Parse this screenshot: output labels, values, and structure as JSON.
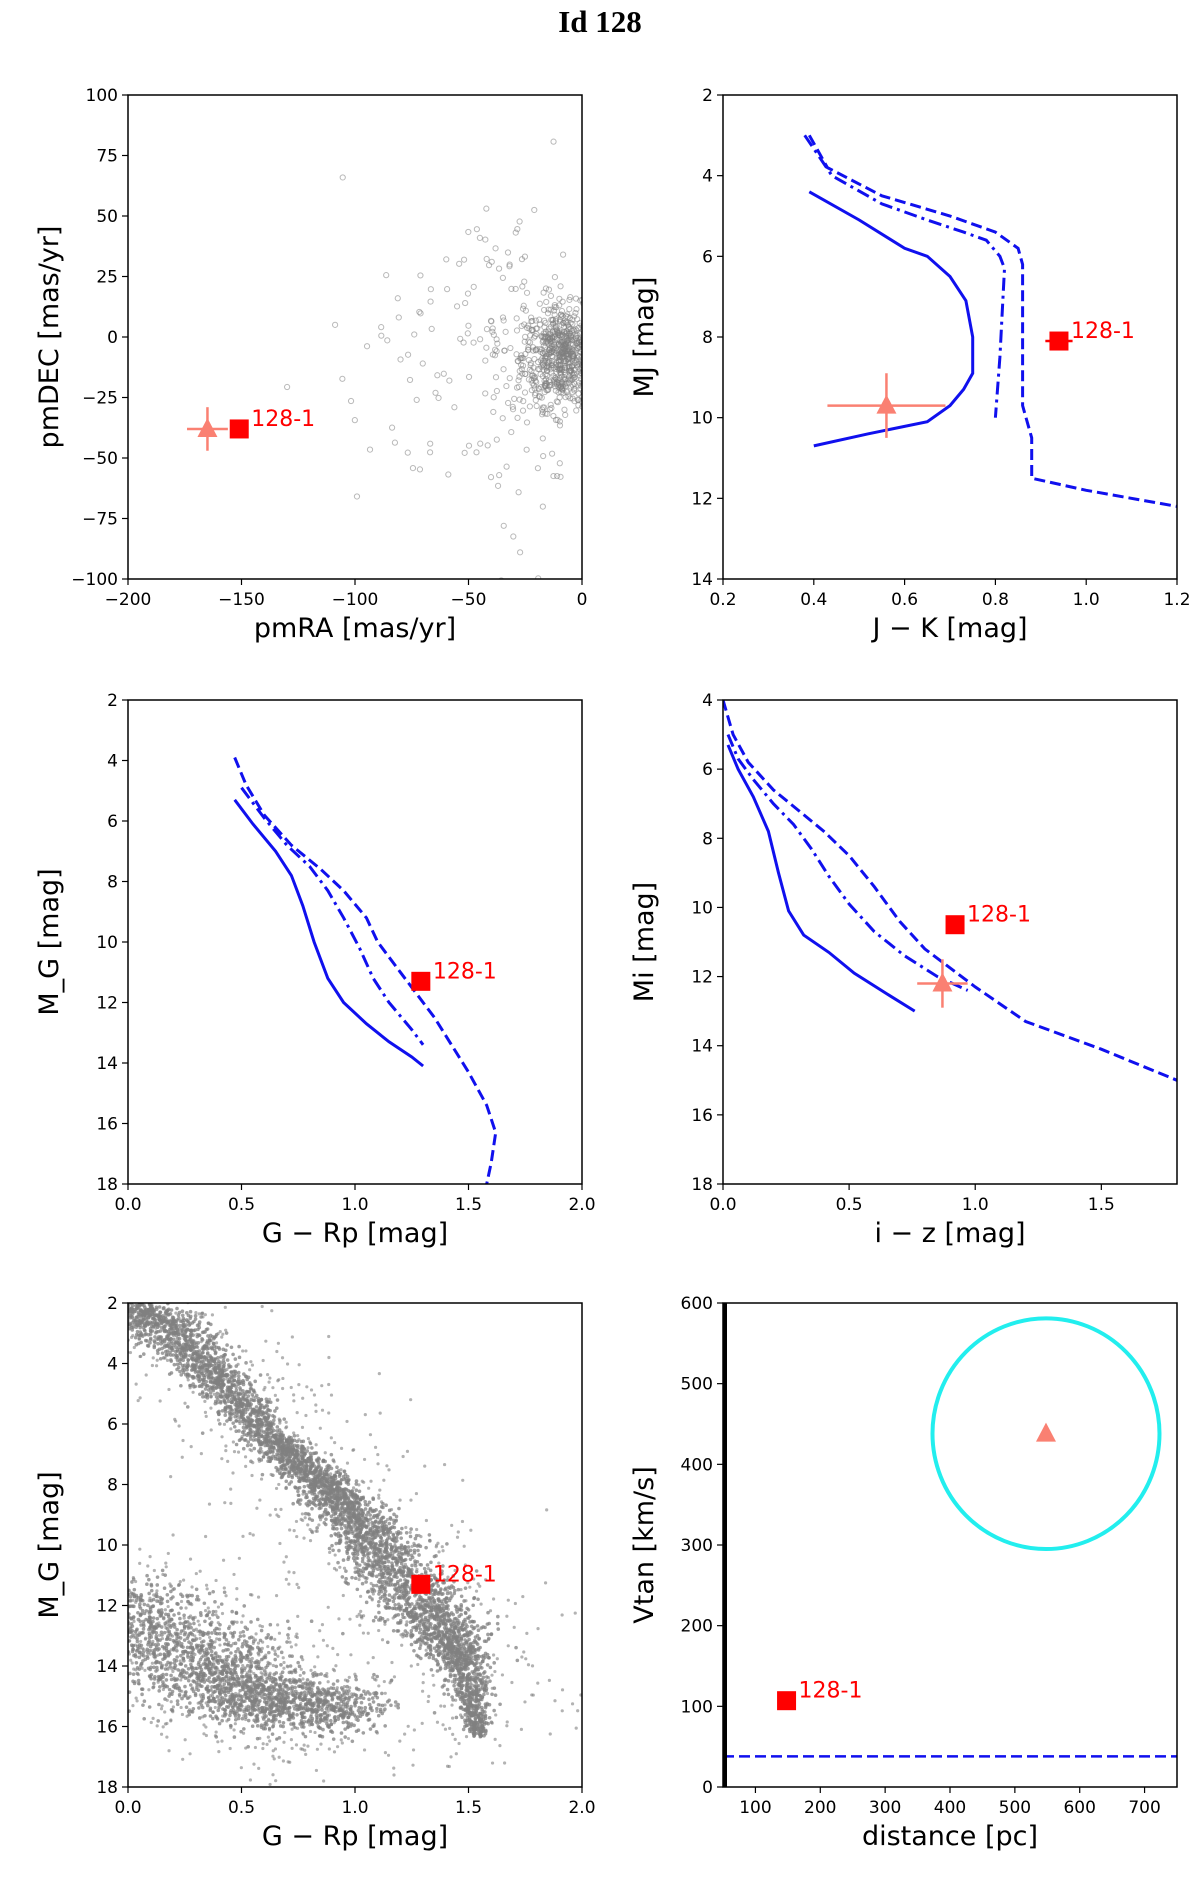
{
  "title": "Id 128",
  "colors": {
    "model": "#1010ee",
    "target": "#ff0000",
    "estimate": "#fa8072",
    "background_stars": "#808080",
    "circle": "#22eeee"
  },
  "chart_data": [
    {
      "id": "pm",
      "type": "scatter",
      "xlabel": "pmRA [mas/yr]",
      "ylabel": "pmDEC [mas/yr]",
      "xlim": [
        -200,
        0
      ],
      "ylim": [
        -100,
        100
      ],
      "xticks": [
        -200,
        -150,
        -100,
        -50,
        0
      ],
      "xtick_labels": [
        "−200",
        "−150",
        "−100",
        "−50",
        "0"
      ],
      "yticks": [
        100,
        75,
        50,
        25,
        0,
        -25,
        -50,
        -75,
        -100
      ],
      "ytick_labels": [
        "100",
        "75",
        "50",
        "25",
        "0",
        "−25",
        "−50",
        "−75",
        "−100"
      ],
      "series": [
        {
          "name": "field stars",
          "style": "hollow-circle",
          "cluster": {
            "cx": -8,
            "cy": -8,
            "sx": 9,
            "sy": 10,
            "n": 700,
            "tail": 180
          }
        },
        {
          "name": "estimate",
          "style": "triangle",
          "x": -165,
          "y": -38,
          "xerr": 9,
          "yerr": 9
        },
        {
          "name": "128-1",
          "style": "square",
          "x": -151,
          "y": -38,
          "label": "128-1"
        }
      ]
    },
    {
      "id": "jk",
      "type": "line",
      "xlabel": "J − K [mag]",
      "ylabel": "MJ [mag]",
      "xlim": [
        0.2,
        1.2
      ],
      "ylim": [
        14,
        2
      ],
      "xticks": [
        0.2,
        0.4,
        0.6,
        0.8,
        1.0,
        1.2
      ],
      "xtick_labels": [
        "0.2",
        "0.4",
        "0.6",
        "0.8",
        "1.0",
        "1.2"
      ],
      "yticks": [
        2,
        4,
        6,
        8,
        10,
        12,
        14
      ],
      "ytick_labels": [
        "2",
        "4",
        "6",
        "8",
        "10",
        "12",
        "14"
      ],
      "series": [
        {
          "name": "solid",
          "style": "solid",
          "x": [
            0.39,
            0.5,
            0.6,
            0.65,
            0.7,
            0.735,
            0.75,
            0.75,
            0.73,
            0.7,
            0.65,
            0.52,
            0.4
          ],
          "y": [
            4.4,
            5.1,
            5.8,
            6.0,
            6.5,
            7.1,
            8.0,
            8.9,
            9.3,
            9.7,
            10.1,
            10.4,
            10.7
          ]
        },
        {
          "name": "dashdot",
          "style": "dashdot",
          "x": [
            0.38,
            0.44,
            0.55,
            0.65,
            0.73,
            0.78,
            0.81,
            0.82,
            0.81,
            0.8
          ],
          "y": [
            3.0,
            4.0,
            4.7,
            5.1,
            5.4,
            5.6,
            6.0,
            6.3,
            8.5,
            10.0
          ]
        },
        {
          "name": "dashed",
          "style": "dashed",
          "x": [
            0.39,
            0.43,
            0.55,
            0.7,
            0.8,
            0.85,
            0.86,
            0.86,
            0.88,
            0.88,
            1.0,
            1.2
          ],
          "y": [
            3.0,
            3.8,
            4.5,
            5.0,
            5.4,
            5.8,
            6.2,
            9.7,
            10.5,
            11.5,
            11.8,
            12.2
          ]
        },
        {
          "name": "estimate",
          "style": "triangle",
          "x": 0.56,
          "y": 9.7,
          "xerr": 0.13,
          "yerr": 0.8
        },
        {
          "name": "128-1",
          "style": "square",
          "x": 0.94,
          "y": 8.1,
          "xerr": 0.03,
          "label": "128-1"
        }
      ]
    },
    {
      "id": "grp",
      "type": "line",
      "xlabel": "G − Rp [mag]",
      "ylabel": "M_G [mag]",
      "xlim": [
        0.0,
        2.0
      ],
      "ylim": [
        18,
        2
      ],
      "xticks": [
        0.0,
        0.5,
        1.0,
        1.5,
        2.0
      ],
      "xtick_labels": [
        "0.0",
        "0.5",
        "1.0",
        "1.5",
        "2.0"
      ],
      "yticks": [
        2,
        4,
        6,
        8,
        10,
        12,
        14,
        16,
        18
      ],
      "ytick_labels": [
        "2",
        "4",
        "6",
        "8",
        "10",
        "12",
        "14",
        "16",
        "18"
      ],
      "series": [
        {
          "name": "solid",
          "style": "solid",
          "x": [
            0.47,
            0.55,
            0.65,
            0.72,
            0.77,
            0.82,
            0.88,
            0.95,
            1.05,
            1.15,
            1.25,
            1.3
          ],
          "y": [
            5.3,
            6.1,
            7.0,
            7.8,
            8.8,
            10.0,
            11.2,
            12.0,
            12.7,
            13.3,
            13.8,
            14.1
          ]
        },
        {
          "name": "dashdot",
          "style": "dashdot",
          "x": [
            0.5,
            0.6,
            0.7,
            0.8,
            0.88,
            0.95,
            1.02,
            1.08,
            1.15,
            1.25,
            1.3
          ],
          "y": [
            4.9,
            5.9,
            6.8,
            7.5,
            8.3,
            9.2,
            10.2,
            11.2,
            12.0,
            12.9,
            13.4
          ]
        },
        {
          "name": "dashed",
          "style": "dashed",
          "x": [
            0.47,
            0.52,
            0.6,
            0.72,
            0.85,
            0.95,
            1.05,
            1.1,
            1.2,
            1.35,
            1.5,
            1.58,
            1.62,
            1.6,
            1.58
          ],
          "y": [
            3.9,
            4.8,
            5.8,
            6.8,
            7.6,
            8.3,
            9.2,
            10.0,
            11.0,
            12.5,
            14.3,
            15.4,
            16.3,
            17.3,
            18.0
          ]
        },
        {
          "name": "128-1",
          "style": "square",
          "x": 1.29,
          "y": 11.3,
          "label": "128-1"
        }
      ]
    },
    {
      "id": "iz",
      "type": "line",
      "xlabel": "i − z [mag]",
      "ylabel": "Mi [mag]",
      "xlim": [
        0.0,
        1.8
      ],
      "ylim": [
        18,
        4
      ],
      "xticks": [
        0.0,
        0.5,
        1.0,
        1.5
      ],
      "xtick_labels": [
        "0.0",
        "0.5",
        "1.0",
        "1.5"
      ],
      "yticks": [
        4,
        6,
        8,
        10,
        12,
        14,
        16,
        18
      ],
      "ytick_labels": [
        "4",
        "6",
        "8",
        "10",
        "12",
        "14",
        "16",
        "18"
      ],
      "series": [
        {
          "name": "solid",
          "style": "solid",
          "x": [
            0.02,
            0.06,
            0.12,
            0.18,
            0.22,
            0.26,
            0.32,
            0.42,
            0.52,
            0.65,
            0.76
          ],
          "y": [
            5.3,
            6.0,
            6.8,
            7.8,
            9.0,
            10.1,
            10.8,
            11.3,
            11.9,
            12.5,
            13.0
          ]
        },
        {
          "name": "dashdot",
          "style": "dashdot",
          "x": [
            0.02,
            0.06,
            0.12,
            0.2,
            0.28,
            0.35,
            0.42,
            0.5,
            0.6,
            0.72,
            0.85,
            0.97
          ],
          "y": [
            5.0,
            5.7,
            6.3,
            7.0,
            7.6,
            8.3,
            9.1,
            9.9,
            10.7,
            11.4,
            12.0,
            12.4
          ]
        },
        {
          "name": "dashed",
          "style": "dashed",
          "x": [
            0.0,
            0.04,
            0.1,
            0.2,
            0.3,
            0.4,
            0.5,
            0.6,
            0.7,
            0.8,
            1.0,
            1.2,
            1.5,
            1.8
          ],
          "y": [
            4.0,
            5.0,
            5.8,
            6.6,
            7.2,
            7.8,
            8.5,
            9.4,
            10.4,
            11.2,
            12.3,
            13.3,
            14.1,
            15.0
          ]
        },
        {
          "name": "estimate",
          "style": "triangle",
          "x": 0.87,
          "y": 12.2,
          "xerr": 0.1,
          "yerr": 0.7
        },
        {
          "name": "128-1",
          "style": "square",
          "x": 0.92,
          "y": 10.5,
          "label": "128-1"
        }
      ]
    },
    {
      "id": "cmd",
      "type": "scatter",
      "xlabel": "G − Rp [mag]",
      "ylabel": "M_G [mag]",
      "xlim": [
        0.0,
        2.0
      ],
      "ylim": [
        18,
        2
      ],
      "xticks": [
        0.0,
        0.5,
        1.0,
        1.5,
        2.0
      ],
      "xtick_labels": [
        "0.0",
        "0.5",
        "1.0",
        "1.5",
        "2.0"
      ],
      "yticks": [
        2,
        4,
        6,
        8,
        10,
        12,
        14,
        16,
        18
      ],
      "ytick_labels": [
        "2",
        "4",
        "6",
        "8",
        "10",
        "12",
        "14",
        "16",
        "18"
      ],
      "series": [
        {
          "name": "main sequence",
          "style": "dense-band",
          "x": [
            0.0,
            0.2,
            0.4,
            0.6,
            0.8,
            0.95,
            1.1,
            1.25,
            1.38,
            1.48,
            1.55
          ],
          "y": [
            2.0,
            3.0,
            4.5,
            6.3,
            7.6,
            8.7,
            10.0,
            11.5,
            12.8,
            14.0,
            16.3
          ],
          "width": [
            0.22,
            0.2,
            0.15,
            0.12,
            0.14,
            0.16,
            0.2,
            0.25,
            0.2,
            0.12,
            0.05
          ]
        },
        {
          "name": "white dwarfs",
          "style": "dense-band",
          "x": [
            0.0,
            0.1,
            0.2,
            0.3,
            0.4,
            0.5,
            0.6,
            0.7,
            0.8,
            0.88
          ],
          "y": [
            11.5,
            12.5,
            13.2,
            13.8,
            14.3,
            14.8,
            15.1,
            15.3,
            15.4,
            15.5
          ],
          "width": [
            0.35,
            0.45,
            0.45,
            0.45,
            0.4,
            0.45,
            0.45,
            0.45,
            0.45,
            0.35
          ]
        },
        {
          "name": "128-1",
          "style": "square",
          "x": 1.29,
          "y": 11.3,
          "label": "128-1"
        }
      ]
    },
    {
      "id": "vtan",
      "type": "scatter",
      "xlabel": "distance [pc]",
      "ylabel": "Vtan [km/s]",
      "xlim": [
        50,
        750
      ],
      "ylim": [
        0,
        600
      ],
      "xticks": [
        100,
        200,
        300,
        400,
        500,
        600,
        700
      ],
      "xtick_labels": [
        "100",
        "200",
        "300",
        "400",
        "500",
        "600",
        "700"
      ],
      "yticks": [
        0,
        100,
        200,
        300,
        400,
        500,
        600
      ],
      "ytick_labels": [
        "0",
        "100",
        "200",
        "300",
        "400",
        "500",
        "600"
      ],
      "hline": 38,
      "ellipse": {
        "cx": 548,
        "cy": 438,
        "rx": 175,
        "ry": 143
      },
      "series": [
        {
          "name": "estimate",
          "style": "triangle",
          "x": 548,
          "y": 438
        },
        {
          "name": "128-1",
          "style": "square",
          "x": 148,
          "y": 107,
          "label": "128-1"
        }
      ]
    }
  ]
}
